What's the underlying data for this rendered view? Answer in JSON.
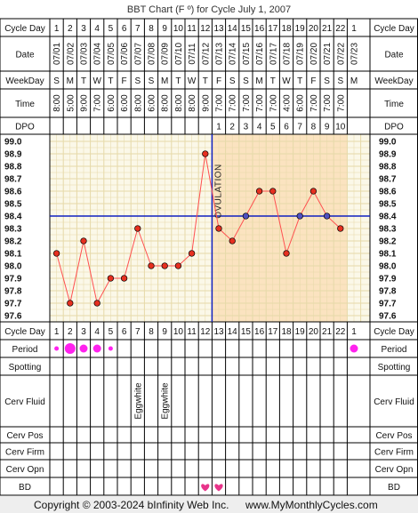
{
  "chart_data": {
    "type": "line",
    "title": "BBT Chart (F º) for Cycle July 1, 2007",
    "row_labels": {
      "cycle_day": "Cycle Day",
      "date": "Date",
      "weekday": "WeekDay",
      "time": "Time",
      "dpo": "DPO",
      "period": "Period",
      "spotting": "Spotting",
      "cerv_fluid": "Cerv Fluid",
      "cerv_pos": "Cerv Pos",
      "cerv_firm": "Cerv Firm",
      "cerv_opn": "Cerv Opn",
      "bd": "BD"
    },
    "cycle_days": [
      "1",
      "2",
      "3",
      "4",
      "5",
      "6",
      "7",
      "8",
      "9",
      "10",
      "11",
      "12",
      "13",
      "14",
      "15",
      "16",
      "17",
      "18",
      "19",
      "20",
      "21",
      "22",
      "1"
    ],
    "dates": [
      "07/01",
      "07/02",
      "07/03",
      "07/04",
      "07/05",
      "07/06",
      "07/07",
      "07/08",
      "07/09",
      "07/10",
      "07/11",
      "07/12",
      "07/13",
      "07/14",
      "07/15",
      "07/16",
      "07/17",
      "07/18",
      "07/19",
      "07/20",
      "07/21",
      "07/22",
      "07/23"
    ],
    "weekdays": [
      "S",
      "M",
      "T",
      "W",
      "T",
      "F",
      "S",
      "S",
      "M",
      "T",
      "W",
      "T",
      "F",
      "S",
      "S",
      "M",
      "T",
      "W",
      "T",
      "F",
      "S",
      "S",
      "M"
    ],
    "times": [
      "8:00",
      "5:00",
      "9:00",
      "7:00",
      "6:00",
      "6:00",
      "8:00",
      "6:00",
      "8:00",
      "8:00",
      "8:00",
      "9:00",
      "7:00",
      "7:00",
      "7:00",
      "7:00",
      "7:00",
      "4:00",
      "6:00",
      "7:00",
      "7:00",
      "7:00",
      ""
    ],
    "dpo": [
      "",
      "",
      "",
      "",
      "",
      "",
      "",
      "",
      "",
      "",
      "",
      "",
      "1",
      "2",
      "3",
      "4",
      "5",
      "6",
      "7",
      "8",
      "9",
      "10",
      ""
    ],
    "y_ticks": [
      "99.0",
      "98.9",
      "98.8",
      "98.7",
      "98.6",
      "98.5",
      "98.4",
      "98.3",
      "98.2",
      "98.1",
      "98.0",
      "97.9",
      "97.8",
      "97.7",
      "97.6"
    ],
    "ylim": [
      97.6,
      99.0
    ],
    "series": [
      {
        "values": [
          98.1,
          97.7,
          98.2,
          97.7,
          97.9,
          97.9,
          98.3,
          98.0,
          98.0,
          98.0,
          98.1,
          98.9,
          98.3,
          98.2,
          98.4,
          98.6,
          98.6,
          98.1,
          98.4,
          98.6,
          98.4,
          98.3,
          null
        ]
      }
    ],
    "coverline": 98.4,
    "ovulation_day_index": 11,
    "ovulation_label": "OVULATION",
    "luteal_start_index": 12,
    "luteal_end_index": 21,
    "period": [
      "small",
      "large",
      "medium",
      "medium",
      "small",
      "",
      "",
      "",
      "",
      "",
      "",
      "",
      "",
      "",
      "",
      "",
      "",
      "",
      "",
      "",
      "",
      "",
      "medium"
    ],
    "spotting": [],
    "cerv_fluid": [
      "",
      "",
      "",
      "",
      "",
      "",
      "Eggwhite",
      "",
      "Eggwhite",
      "",
      "",
      "",
      "",
      "",
      "",
      "",
      "",
      "",
      "",
      "",
      "",
      "",
      ""
    ],
    "bd": [
      "",
      "",
      "",
      "",
      "",
      "",
      "",
      "",
      "",
      "",
      "",
      "heart",
      "heart",
      "",
      "",
      "",
      "",
      "",
      "",
      "",
      "",
      "",
      ""
    ],
    "colors": {
      "grid": "#e6d9a8",
      "luteal": "#fbe3c0",
      "follicular": "#fbf8e8",
      "line": "#ff5050",
      "point_fill": "#e63020",
      "point_plain": "#e63020",
      "point_coverline": "#5050c0",
      "blue": "#1020c0",
      "period": "#ff22ee",
      "heart": "#e8348a"
    }
  },
  "footer": {
    "copyright": "Copyright © 2003-2024 bInfinity Web Inc.",
    "url": "www.MyMonthlyCycles.com"
  }
}
